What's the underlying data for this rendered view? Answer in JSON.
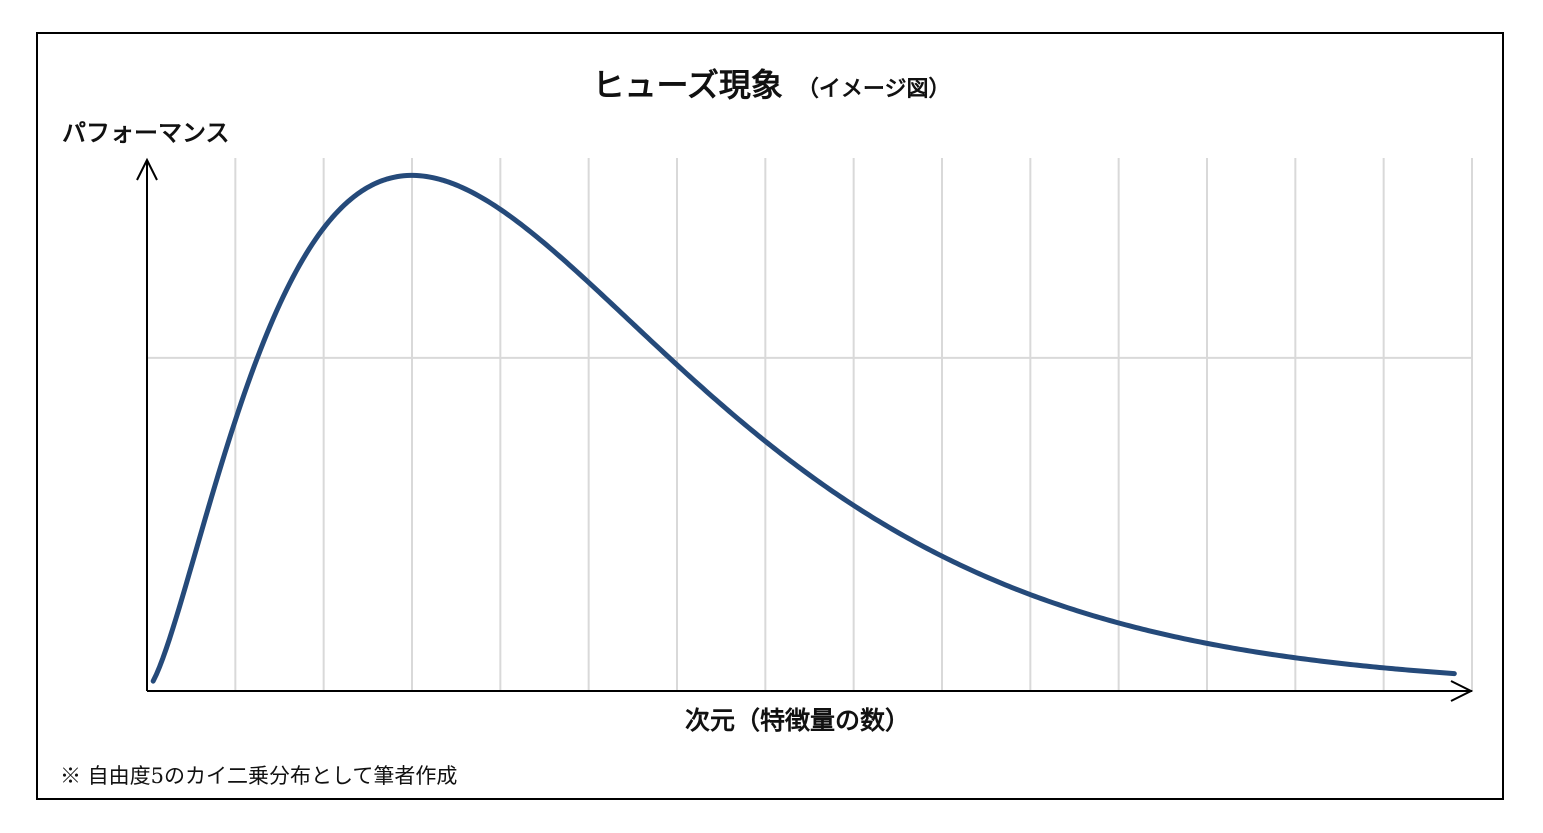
{
  "chart_data": {
    "type": "line",
    "title": "ヒューズ現象",
    "subtitle": "（イメージ図）",
    "xlabel": "次元（特徴量の数）",
    "ylabel": "パフォーマンス",
    "note": "※ 自由度5のカイ二乗分布として筆者作成",
    "curve": "chi-square pdf, 5 degrees of freedom",
    "degrees_of_freedom": 5,
    "xlim": [
      0,
      15
    ],
    "ylim": [
      0,
      0.16
    ],
    "grid": true,
    "colors": {
      "line": "#254a7a",
      "grid": "#d9d9d9",
      "axis": "#000000",
      "frame": "#000000"
    }
  }
}
